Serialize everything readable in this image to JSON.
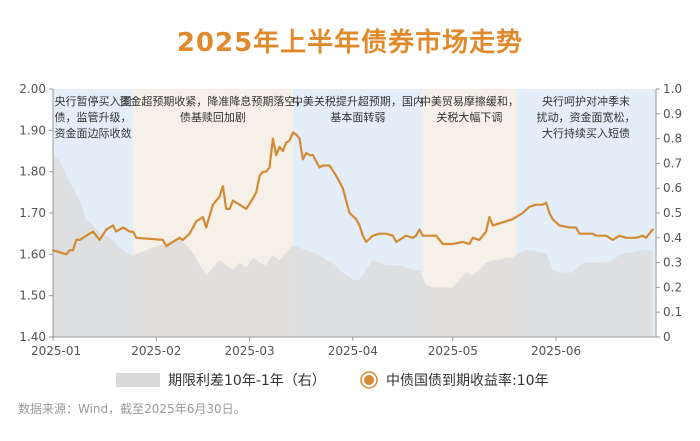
{
  "title": "2025年上半年债券市场走势",
  "source": "数据来源：Wind，截至2025年6月30日。",
  "chart_data": {
    "type": "line",
    "left_axis": {
      "ylim": [
        1.4,
        2.0
      ],
      "ticks": [
        "1.40",
        "1.50",
        "1.60",
        "1.70",
        "1.80",
        "1.90",
        "2.00"
      ]
    },
    "right_axis": {
      "ylim": [
        0,
        1.0
      ],
      "ticks": [
        "0",
        "0.1",
        "0.2",
        "0.3",
        "0.4",
        "0.5",
        "0.6",
        "0.7",
        "0.8",
        "0.9",
        "1.0"
      ]
    },
    "x_range": [
      0,
      181
    ],
    "x_ticks": [
      {
        "label": "2025-01",
        "day": 0
      },
      {
        "label": "2025-02",
        "day": 31
      },
      {
        "label": "2025-03",
        "day": 59
      },
      {
        "label": "2025-04",
        "day": 90
      },
      {
        "label": "2025-05",
        "day": 120
      },
      {
        "label": "2025-06",
        "day": 151
      }
    ],
    "phases": [
      {
        "start": 0,
        "end": 24,
        "shade": "blue",
        "label_lines": [
          "央行暂停买入国",
          "债，监管升级，",
          "资金面边际收敛"
        ]
      },
      {
        "start": 24,
        "end": 72,
        "shade": "beige",
        "label_lines": [
          "资金超预期收紧，降准降息预期落空，",
          "债基赎回加剧"
        ]
      },
      {
        "start": 72,
        "end": 111,
        "shade": "blue",
        "label_lines": [
          "中美关税提升超预期，国内",
          "基本面转弱"
        ]
      },
      {
        "start": 111,
        "end": 139,
        "shade": "beige",
        "label_lines": [
          "中美贸易摩擦缓和，",
          "关税大幅下调"
        ]
      },
      {
        "start": 139,
        "end": 181,
        "shade": "blue",
        "label_lines": [
          "央行呵护对冲季末",
          "扰动，资金面宽松，",
          "大行持续买入短债"
        ]
      }
    ],
    "series": [
      {
        "name": "中债国债到期收益率:10年",
        "axis": "left",
        "color": "#d48a33",
        "points": [
          [
            0,
            1.61
          ],
          [
            2,
            1.605
          ],
          [
            4,
            1.6
          ],
          [
            5,
            1.61
          ],
          [
            6,
            1.61
          ],
          [
            7,
            1.635
          ],
          [
            8,
            1.635
          ],
          [
            10,
            1.645
          ],
          [
            12,
            1.655
          ],
          [
            13,
            1.645
          ],
          [
            14,
            1.635
          ],
          [
            16,
            1.66
          ],
          [
            17,
            1.665
          ],
          [
            18,
            1.67
          ],
          [
            19,
            1.655
          ],
          [
            20,
            1.66
          ],
          [
            21,
            1.665
          ],
          [
            22,
            1.66
          ],
          [
            23,
            1.655
          ],
          [
            24,
            1.655
          ],
          [
            25,
            1.64
          ],
          [
            33,
            1.635
          ],
          [
            34,
            1.62
          ],
          [
            36,
            1.63
          ],
          [
            38,
            1.64
          ],
          [
            39,
            1.635
          ],
          [
            41,
            1.65
          ],
          [
            43,
            1.68
          ],
          [
            45,
            1.69
          ],
          [
            46,
            1.665
          ],
          [
            48,
            1.72
          ],
          [
            50,
            1.74
          ],
          [
            51,
            1.765
          ],
          [
            52,
            1.71
          ],
          [
            53,
            1.71
          ],
          [
            54,
            1.73
          ],
          [
            56,
            1.72
          ],
          [
            58,
            1.71
          ],
          [
            60,
            1.735
          ],
          [
            61,
            1.75
          ],
          [
            62,
            1.79
          ],
          [
            63,
            1.8
          ],
          [
            64,
            1.8
          ],
          [
            65,
            1.81
          ],
          [
            66,
            1.88
          ],
          [
            67,
            1.84
          ],
          [
            68,
            1.86
          ],
          [
            69,
            1.85
          ],
          [
            70,
            1.87
          ],
          [
            71,
            1.875
          ],
          [
            72,
            1.895
          ],
          [
            73,
            1.89
          ],
          [
            74,
            1.88
          ],
          [
            75,
            1.83
          ],
          [
            76,
            1.845
          ],
          [
            77,
            1.84
          ],
          [
            78,
            1.84
          ],
          [
            79,
            1.825
          ],
          [
            80,
            1.81
          ],
          [
            81,
            1.815
          ],
          [
            83,
            1.815
          ],
          [
            85,
            1.79
          ],
          [
            87,
            1.76
          ],
          [
            89,
            1.7
          ],
          [
            91,
            1.685
          ],
          [
            92,
            1.67
          ],
          [
            93,
            1.645
          ],
          [
            94,
            1.63
          ],
          [
            96,
            1.645
          ],
          [
            98,
            1.65
          ],
          [
            100,
            1.65
          ],
          [
            102,
            1.645
          ],
          [
            103,
            1.63
          ],
          [
            105,
            1.64
          ],
          [
            106,
            1.645
          ],
          [
            108,
            1.64
          ],
          [
            109,
            1.645
          ],
          [
            110,
            1.66
          ],
          [
            111,
            1.645
          ],
          [
            113,
            1.645
          ],
          [
            115,
            1.645
          ],
          [
            116,
            1.635
          ],
          [
            117,
            1.625
          ],
          [
            120,
            1.625
          ],
          [
            123,
            1.63
          ],
          [
            125,
            1.625
          ],
          [
            126,
            1.64
          ],
          [
            128,
            1.635
          ],
          [
            130,
            1.655
          ],
          [
            131,
            1.69
          ],
          [
            132,
            1.67
          ],
          [
            134,
            1.675
          ],
          [
            136,
            1.68
          ],
          [
            138,
            1.685
          ],
          [
            139,
            1.69
          ],
          [
            141,
            1.7
          ],
          [
            143,
            1.715
          ],
          [
            145,
            1.72
          ],
          [
            147,
            1.72
          ],
          [
            148,
            1.725
          ],
          [
            149,
            1.7
          ],
          [
            150,
            1.685
          ],
          [
            152,
            1.67
          ],
          [
            155,
            1.665
          ],
          [
            157,
            1.665
          ],
          [
            158,
            1.65
          ],
          [
            160,
            1.65
          ],
          [
            162,
            1.65
          ],
          [
            163,
            1.645
          ],
          [
            166,
            1.645
          ],
          [
            167,
            1.64
          ],
          [
            168,
            1.635
          ],
          [
            170,
            1.645
          ],
          [
            172,
            1.64
          ],
          [
            175,
            1.64
          ],
          [
            177,
            1.645
          ],
          [
            178,
            1.64
          ],
          [
            179,
            1.65
          ],
          [
            180,
            1.66
          ]
        ]
      },
      {
        "name": "期限利差10年-1年（右）",
        "axis": "right",
        "color": "#dcdcdc",
        "points": [
          [
            0,
            0.73
          ],
          [
            2,
            0.71
          ],
          [
            4,
            0.65
          ],
          [
            6,
            0.6
          ],
          [
            8,
            0.55
          ],
          [
            10,
            0.47
          ],
          [
            12,
            0.45
          ],
          [
            14,
            0.42
          ],
          [
            16,
            0.41
          ],
          [
            18,
            0.39
          ],
          [
            20,
            0.36
          ],
          [
            22,
            0.34
          ],
          [
            24,
            0.33
          ],
          [
            26,
            0.34
          ],
          [
            28,
            0.35
          ],
          [
            30,
            0.36
          ],
          [
            32,
            0.37
          ],
          [
            34,
            0.38
          ],
          [
            36,
            0.39
          ],
          [
            38,
            0.4
          ],
          [
            40,
            0.37
          ],
          [
            42,
            0.34
          ],
          [
            44,
            0.29
          ],
          [
            46,
            0.25
          ],
          [
            48,
            0.28
          ],
          [
            50,
            0.31
          ],
          [
            52,
            0.29
          ],
          [
            54,
            0.27
          ],
          [
            56,
            0.3
          ],
          [
            58,
            0.28
          ],
          [
            60,
            0.32
          ],
          [
            62,
            0.3
          ],
          [
            64,
            0.29
          ],
          [
            66,
            0.33
          ],
          [
            68,
            0.31
          ],
          [
            70,
            0.34
          ],
          [
            72,
            0.37
          ],
          [
            74,
            0.36
          ],
          [
            76,
            0.35
          ],
          [
            78,
            0.34
          ],
          [
            80,
            0.33
          ],
          [
            82,
            0.31
          ],
          [
            84,
            0.3
          ],
          [
            86,
            0.27
          ],
          [
            88,
            0.25
          ],
          [
            90,
            0.23
          ],
          [
            92,
            0.23
          ],
          [
            94,
            0.27
          ],
          [
            96,
            0.31
          ],
          [
            98,
            0.3
          ],
          [
            100,
            0.29
          ],
          [
            102,
            0.29
          ],
          [
            104,
            0.29
          ],
          [
            106,
            0.28
          ],
          [
            108,
            0.27
          ],
          [
            110,
            0.27
          ],
          [
            112,
            0.21
          ],
          [
            114,
            0.2
          ],
          [
            116,
            0.2
          ],
          [
            118,
            0.2
          ],
          [
            120,
            0.2
          ],
          [
            122,
            0.23
          ],
          [
            124,
            0.26
          ],
          [
            126,
            0.25
          ],
          [
            128,
            0.27
          ],
          [
            130,
            0.3
          ],
          [
            132,
            0.31
          ],
          [
            134,
            0.31
          ],
          [
            136,
            0.32
          ],
          [
            138,
            0.32
          ],
          [
            140,
            0.34
          ],
          [
            142,
            0.35
          ],
          [
            144,
            0.35
          ],
          [
            146,
            0.34
          ],
          [
            148,
            0.34
          ],
          [
            150,
            0.27
          ],
          [
            152,
            0.26
          ],
          [
            154,
            0.26
          ],
          [
            156,
            0.26
          ],
          [
            158,
            0.29
          ],
          [
            160,
            0.3
          ],
          [
            162,
            0.3
          ],
          [
            164,
            0.3
          ],
          [
            166,
            0.3
          ],
          [
            168,
            0.31
          ],
          [
            170,
            0.33
          ],
          [
            172,
            0.34
          ],
          [
            174,
            0.34
          ],
          [
            176,
            0.35
          ],
          [
            178,
            0.35
          ],
          [
            180,
            0.35
          ]
        ]
      }
    ],
    "legend": [
      "期限利差10年-1年（右）",
      "中债国债到期收益率:10年"
    ],
    "legend_position": "bottom",
    "colors": {
      "title": "#e08a2c",
      "phase_blue": "#e4eef8",
      "phase_beige": "#f5f0e8",
      "axis_text": "#555555"
    }
  }
}
